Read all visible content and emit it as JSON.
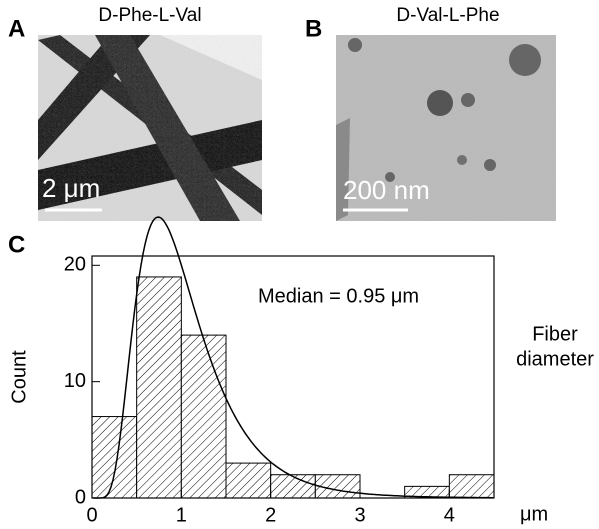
{
  "panels": [
    {
      "label": "A",
      "title": "D-Phe-L-Val",
      "scale_bar": "2 μm"
    },
    {
      "label": "B",
      "title": "D-Val-L-Phe",
      "scale_bar": "200 nm"
    }
  ],
  "chart_data": {
    "type": "histogram",
    "label": "C",
    "bins": [
      0,
      0.5,
      1,
      1.5,
      2,
      2.5,
      3,
      3.5,
      4,
      4.5
    ],
    "values": [
      7,
      19,
      14,
      3,
      2,
      2,
      0,
      1,
      2
    ],
    "xlim": [
      0,
      4.5
    ],
    "xticks": [
      0,
      1,
      2,
      3,
      4
    ],
    "x_unit": "μm",
    "ylim": [
      0,
      20.8
    ],
    "yticks": [
      0,
      10,
      20
    ],
    "y_label": "Count",
    "annotation": "Median = 0.95 μm",
    "side_label": [
      "Fiber",
      "diameter"
    ],
    "color": "#000000"
  }
}
